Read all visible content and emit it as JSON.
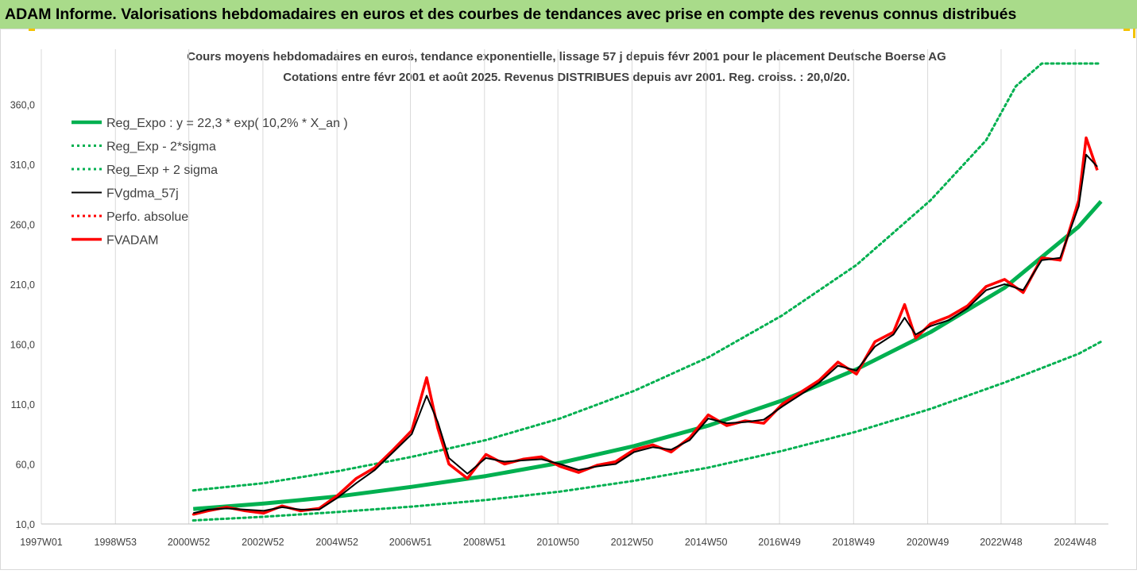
{
  "banner_title": "ADAM Informe. Valorisations hebdomadaires en euros et des courbes de tendances avec prise en compte des revenus connus distribués",
  "chart_data": {
    "type": "line",
    "title": "Cours moyens hebdomadaires en euros, tendance exponentielle, lissage 57 j depuis févr 2001 pour le placement Deutsche Boerse AG",
    "subtitle": "Cotations entre févr 2001 et août 2025. Revenus DISTRIBUES depuis avr 2001. Reg. croiss. : 20,0/20.",
    "xlabel": "",
    "ylabel": "",
    "ylim": [
      10,
      394
    ],
    "y_ticks": [
      "10,0",
      "60,0",
      "110,0",
      "160,0",
      "210,0",
      "260,0",
      "310,0",
      "360,0"
    ],
    "x_ticks": [
      "1997W01",
      "1998W53",
      "2000W52",
      "2002W52",
      "2004W52",
      "2006W51",
      "2008W51",
      "2010W50",
      "2012W50",
      "2014W50",
      "2016W49",
      "2018W49",
      "2020W49",
      "2022W48",
      "2024W48"
    ],
    "x_range_years": [
      1997.0,
      2025.8
    ],
    "grid": "vertical",
    "legend_position": "top-left",
    "series": [
      {
        "name": "Reg_Expo : y = 22,3 * exp( 10,2% *  X_an )",
        "color": "#00b050",
        "style": "solid-thick",
        "x": [
          2001.1,
          2003,
          2005,
          2007,
          2009,
          2011,
          2013,
          2015,
          2017,
          2019,
          2021,
          2023,
          2025,
          2025.6
        ],
        "y": [
          22.5,
          27,
          33,
          41,
          50,
          61,
          75,
          92,
          113,
          139,
          170,
          207,
          258,
          279
        ]
      },
      {
        "name": "Reg_Exp - 2*sigma",
        "color": "#00b050",
        "style": "dotted",
        "x": [
          2001.1,
          2003,
          2005,
          2007,
          2009,
          2011,
          2013,
          2015,
          2017,
          2019,
          2021,
          2023,
          2025,
          2025.6
        ],
        "y": [
          13,
          16,
          20,
          24.5,
          30,
          37,
          46,
          57,
          71,
          87,
          106,
          128,
          152,
          162
        ]
      },
      {
        "name": "Reg_Exp + 2 sigma",
        "color": "#00b050",
        "style": "dotted",
        "x": [
          2001.1,
          2003,
          2005,
          2007,
          2009,
          2011,
          2013,
          2015,
          2017,
          2019,
          2021,
          2022.5,
          2023.3,
          2024,
          2025.6
        ],
        "y": [
          38,
          44,
          54,
          66,
          80,
          98,
          121,
          149,
          184,
          226,
          280,
          330,
          375,
          394,
          394
        ]
      },
      {
        "name": "FVgdma_57j",
        "color": "#000000",
        "style": "solid",
        "x": [
          2001.1,
          2001.5,
          2002,
          2002.5,
          2003,
          2003.5,
          2004,
          2004.5,
          2005,
          2005.5,
          2006,
          2006.5,
          2007,
          2007.4,
          2007.7,
          2008,
          2008.5,
          2009,
          2009.5,
          2010,
          2010.5,
          2011,
          2011.5,
          2012,
          2012.5,
          2013,
          2013.5,
          2014,
          2014.5,
          2015,
          2015.5,
          2016,
          2016.5,
          2017,
          2017.5,
          2018,
          2018.5,
          2019,
          2019.5,
          2020,
          2020.3,
          2020.6,
          2021,
          2021.5,
          2022,
          2022.5,
          2023,
          2023.5,
          2024,
          2024.5,
          2025,
          2025.2,
          2025.5
        ],
        "y": [
          19,
          22,
          23,
          22,
          21,
          24,
          22,
          22,
          32,
          44,
          55,
          70,
          85,
          117,
          95,
          65,
          52,
          65,
          62,
          63,
          64,
          60,
          55,
          58,
          60,
          70,
          74,
          72,
          80,
          98,
          94,
          95,
          97,
          108,
          118,
          128,
          142,
          138,
          158,
          168,
          182,
          168,
          175,
          180,
          190,
          205,
          210,
          205,
          230,
          232,
          275,
          318,
          308
        ]
      },
      {
        "name": "Perfo. absolue",
        "color": "#ff0000",
        "style": "dotted",
        "x": [
          2001.1,
          2001.5,
          2002,
          2002.5,
          2003,
          2003.5,
          2004,
          2004.5,
          2005,
          2005.5,
          2006,
          2006.5,
          2007,
          2007.4,
          2007.7,
          2008,
          2008.5,
          2009,
          2009.5,
          2010,
          2010.5,
          2011,
          2011.5,
          2012,
          2012.5,
          2013,
          2013.5,
          2014,
          2014.5,
          2015,
          2015.5,
          2016,
          2016.5,
          2017,
          2017.5,
          2018,
          2018.5,
          2019,
          2019.5,
          2020,
          2020.3,
          2020.6,
          2021,
          2021.5,
          2022,
          2022.5,
          2023,
          2023.5,
          2024,
          2024.5,
          2025,
          2025.2,
          2025.5
        ],
        "y": [
          18,
          21,
          24,
          21,
          19,
          25,
          21,
          23,
          34,
          48,
          57,
          72,
          88,
          132,
          90,
          60,
          48,
          68,
          60,
          64,
          66,
          58,
          53,
          59,
          62,
          72,
          76,
          70,
          82,
          101,
          92,
          96,
          94,
          110,
          120,
          130,
          145,
          135,
          162,
          170,
          193,
          165,
          177,
          183,
          192,
          208,
          214,
          203,
          232,
          230,
          280,
          332,
          305
        ]
      },
      {
        "name": "FVADAM",
        "color": "#ff0000",
        "style": "solid-thick",
        "x": [
          2001.1,
          2001.5,
          2002,
          2002.5,
          2003,
          2003.5,
          2004,
          2004.5,
          2005,
          2005.5,
          2006,
          2006.5,
          2007,
          2007.4,
          2007.7,
          2008,
          2008.5,
          2009,
          2009.5,
          2010,
          2010.5,
          2011,
          2011.5,
          2012,
          2012.5,
          2013,
          2013.5,
          2014,
          2014.5,
          2015,
          2015.5,
          2016,
          2016.5,
          2017,
          2017.5,
          2018,
          2018.5,
          2019,
          2019.5,
          2020,
          2020.3,
          2020.6,
          2021,
          2021.5,
          2022,
          2022.5,
          2023,
          2023.5,
          2024,
          2024.5,
          2025,
          2025.2,
          2025.5
        ],
        "y": [
          18,
          21,
          24,
          21,
          19,
          25,
          21,
          23,
          34,
          48,
          57,
          72,
          88,
          132,
          90,
          60,
          48,
          68,
          60,
          64,
          66,
          58,
          53,
          59,
          62,
          72,
          76,
          70,
          82,
          101,
          92,
          96,
          94,
          110,
          120,
          130,
          145,
          135,
          162,
          170,
          193,
          165,
          177,
          183,
          192,
          208,
          214,
          203,
          232,
          230,
          280,
          332,
          305
        ]
      }
    ]
  }
}
